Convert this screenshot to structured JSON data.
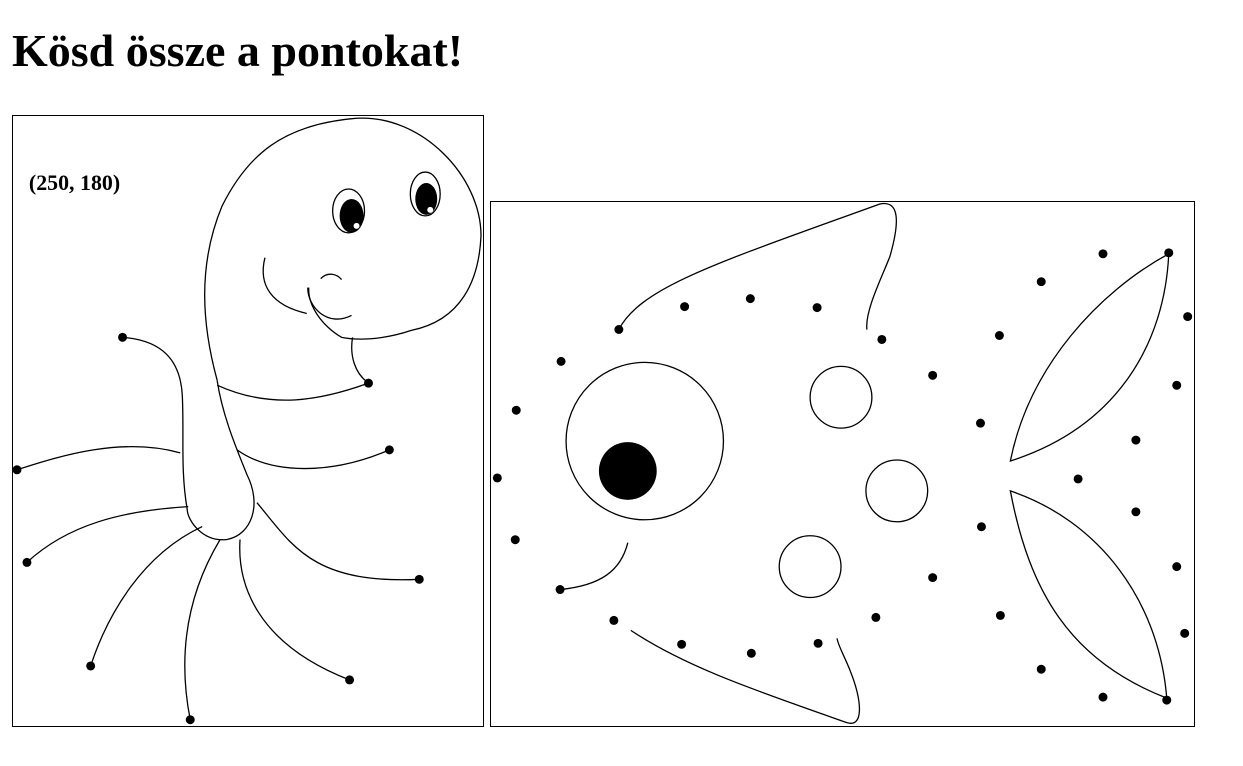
{
  "page": {
    "title": "Kösd össze a pontokat!"
  },
  "octopus": {
    "coord_readout": "(250, 180)"
  },
  "fish": {}
}
